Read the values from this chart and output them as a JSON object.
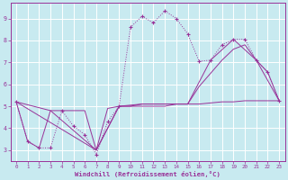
{
  "background_color": "#c8eaf0",
  "grid_color": "#b8d8e0",
  "line_color": "#993399",
  "xlabel": "Windchill (Refroidissement éolien,°C)",
  "xlim": [
    -0.5,
    23.5
  ],
  "ylim": [
    2.5,
    9.7
  ],
  "xticks": [
    0,
    1,
    2,
    3,
    4,
    5,
    6,
    7,
    8,
    9,
    10,
    11,
    12,
    13,
    14,
    15,
    16,
    17,
    18,
    19,
    20,
    21,
    22,
    23
  ],
  "yticks": [
    3,
    4,
    5,
    6,
    7,
    8,
    9
  ],
  "dotted_x": [
    0,
    1,
    2,
    3,
    4,
    5,
    6,
    7,
    8,
    9,
    10,
    11,
    12,
    13,
    14,
    15,
    16,
    17,
    18,
    19,
    20,
    21,
    22,
    23
  ],
  "dotted_y": [
    5.2,
    3.4,
    3.1,
    3.1,
    4.8,
    4.1,
    3.7,
    2.8,
    4.3,
    5.0,
    8.6,
    9.1,
    8.8,
    9.35,
    9.0,
    8.3,
    7.05,
    7.1,
    7.8,
    8.05,
    8.05,
    7.1,
    6.55,
    5.25
  ],
  "flat_x": [
    0,
    1,
    2,
    3,
    4,
    5,
    6,
    7,
    8,
    9,
    10,
    11,
    12,
    13,
    14,
    15,
    16,
    17,
    18,
    19,
    20,
    21,
    22,
    23
  ],
  "flat_y": [
    5.2,
    3.4,
    3.1,
    4.8,
    4.8,
    4.8,
    4.8,
    3.0,
    4.9,
    5.0,
    5.0,
    5.0,
    5.0,
    5.0,
    5.1,
    5.1,
    5.1,
    5.15,
    5.2,
    5.2,
    5.25,
    5.25,
    5.25,
    5.25
  ],
  "diag1_x": [
    0,
    3,
    7,
    9,
    10,
    11,
    12,
    13,
    14,
    15,
    16,
    17,
    18,
    19,
    20,
    21,
    22,
    23
  ],
  "diag1_y": [
    5.2,
    4.8,
    3.0,
    5.0,
    5.0,
    5.1,
    5.1,
    5.1,
    5.1,
    5.1,
    5.9,
    6.5,
    7.1,
    7.6,
    7.8,
    7.1,
    6.55,
    5.25
  ],
  "diag2_x": [
    0,
    7,
    9,
    11,
    13,
    15,
    17,
    19,
    21,
    23
  ],
  "diag2_y": [
    5.2,
    3.0,
    5.0,
    5.1,
    5.1,
    5.1,
    7.1,
    8.05,
    7.1,
    5.25
  ]
}
